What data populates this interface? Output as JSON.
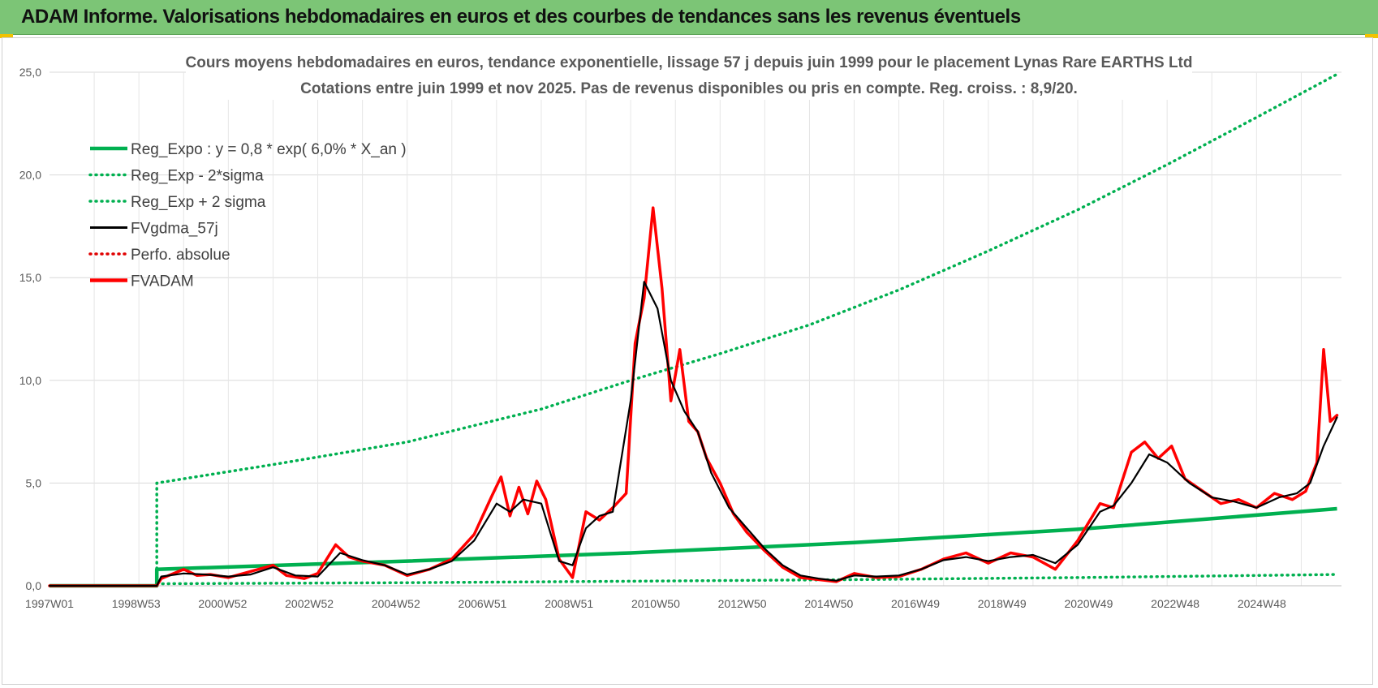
{
  "header": {
    "title": "ADAM Informe. Valorisations hebdomadaires en euros et des courbes de tendances sans les revenus éventuels"
  },
  "chart_data": {
    "type": "line",
    "title_line1": "Cours moyens hebdomadaires en euros, tendance exponentielle, lissage 57 j depuis juin 1999 pour le placement Lynas Rare EARTHS Ltd",
    "title_line2": "Cotations entre juin 1999 et nov 2025.  Pas de revenus disponibles ou pris en compte. Reg. croiss. : 8,9/20.",
    "xlabel": "",
    "ylabel": "",
    "x_range": [
      1997.0,
      2025.9
    ],
    "ylim": [
      0,
      25
    ],
    "y_ticks": [
      "0,0",
      "5,0",
      "10,0",
      "15,0",
      "20,0",
      "25,0"
    ],
    "x_tick_labels": [
      "1997W01",
      "1998W53",
      "2000W52",
      "2002W52",
      "2004W52",
      "2006W51",
      "2008W51",
      "2010W50",
      "2012W50",
      "2014W50",
      "2016W49",
      "2018W49",
      "2020W49",
      "2022W48",
      "2024W48"
    ],
    "grid": true,
    "legend_position": "top-left",
    "legend": [
      {
        "label": "Reg_Expo : y = 0,8 * exp( 6,0% *  X_an )",
        "color": "#00b050",
        "style": "solid-thick"
      },
      {
        "label": "Reg_Exp - 2*sigma",
        "color": "#00b050",
        "style": "dotted"
      },
      {
        "label": "Reg_Exp + 2 sigma",
        "color": "#00b050",
        "style": "dotted"
      },
      {
        "label": "FVgdma_57j",
        "color": "#000000",
        "style": "solid"
      },
      {
        "label": "Perfo. absolue",
        "color": "#e00000",
        "style": "dotted"
      },
      {
        "label": "FVADAM",
        "color": "#ff0000",
        "style": "solid-thick"
      }
    ],
    "series": [
      {
        "name": "Reg_Expo",
        "x": [
          1997.0,
          1999.4,
          1999.4,
          2005,
          2010,
          2015,
          2020,
          2025.8
        ],
        "y": [
          0,
          0,
          0.8,
          1.2,
          1.6,
          2.1,
          2.75,
          3.75
        ]
      },
      {
        "name": "Reg_Exp - 2*sigma",
        "x": [
          1999.4,
          2005,
          2010,
          2015,
          2020,
          2025.8
        ],
        "y": [
          0.1,
          0.15,
          0.22,
          0.3,
          0.4,
          0.55
        ]
      },
      {
        "name": "Reg_Exp + 2 sigma",
        "x": [
          1999.4,
          1999.4,
          2002,
          2005,
          2008,
          2010,
          2012,
          2014,
          2016,
          2018,
          2020,
          2022,
          2024,
          2025.8
        ],
        "y": [
          0,
          5.0,
          5.9,
          7.0,
          8.6,
          10.0,
          11.3,
          12.7,
          14.4,
          16.3,
          18.3,
          20.5,
          22.8,
          24.9
        ]
      },
      {
        "name": "FVgdma_57j",
        "x": [
          1997.0,
          1999.4,
          1999.5,
          2000.0,
          2000.5,
          2001.0,
          2001.5,
          2002.0,
          2002.5,
          2003.0,
          2003.5,
          2004.0,
          2004.5,
          2005.0,
          2005.5,
          2006.0,
          2006.5,
          2007.0,
          2007.3,
          2007.6,
          2008.0,
          2008.4,
          2008.7,
          2009.0,
          2009.3,
          2009.6,
          2010.0,
          2010.3,
          2010.6,
          2010.9,
          2011.2,
          2011.5,
          2011.8,
          2012.2,
          2012.6,
          2013.0,
          2013.4,
          2013.8,
          2014.2,
          2014.6,
          2015.0,
          2015.5,
          2016.0,
          2016.5,
          2017.0,
          2017.5,
          2018.0,
          2018.5,
          2019.0,
          2019.5,
          2020.0,
          2020.5,
          2020.8,
          2021.2,
          2021.6,
          2022.0,
          2022.5,
          2023.0,
          2023.5,
          2024.0,
          2024.5,
          2024.9,
          2025.2,
          2025.5,
          2025.8
        ],
        "y": [
          0,
          0,
          0.45,
          0.6,
          0.55,
          0.45,
          0.55,
          0.9,
          0.5,
          0.45,
          1.6,
          1.25,
          1.0,
          0.55,
          0.8,
          1.2,
          2.2,
          4.0,
          3.6,
          4.2,
          4.0,
          1.2,
          1.0,
          2.8,
          3.4,
          3.6,
          9.0,
          14.8,
          13.5,
          10.0,
          8.5,
          7.5,
          5.5,
          3.8,
          2.8,
          1.8,
          1.0,
          0.5,
          0.35,
          0.25,
          0.5,
          0.45,
          0.5,
          0.8,
          1.25,
          1.4,
          1.2,
          1.4,
          1.5,
          1.1,
          2.0,
          3.6,
          3.9,
          5.0,
          6.4,
          6.0,
          5.0,
          4.3,
          4.1,
          3.8,
          4.3,
          4.5,
          5.0,
          6.8,
          8.2
        ]
      },
      {
        "name": "FVADAM",
        "x": [
          1997.0,
          1999.4,
          1999.5,
          2000.0,
          2000.3,
          2000.6,
          2001.0,
          2001.5,
          2002.0,
          2002.3,
          2002.7,
          2003.0,
          2003.4,
          2003.7,
          2004.0,
          2004.5,
          2005.0,
          2005.5,
          2006.0,
          2006.5,
          2006.9,
          2007.1,
          2007.3,
          2007.5,
          2007.7,
          2007.9,
          2008.1,
          2008.4,
          2008.7,
          2009.0,
          2009.3,
          2009.6,
          2009.9,
          2010.1,
          2010.3,
          2010.5,
          2010.7,
          2010.9,
          2011.1,
          2011.3,
          2011.5,
          2011.7,
          2012.0,
          2012.3,
          2012.6,
          2013.0,
          2013.4,
          2013.8,
          2014.2,
          2014.6,
          2015.0,
          2015.5,
          2016.0,
          2016.5,
          2017.0,
          2017.5,
          2018.0,
          2018.5,
          2019.0,
          2019.5,
          2020.0,
          2020.5,
          2020.8,
          2021.2,
          2021.5,
          2021.8,
          2022.1,
          2022.4,
          2022.8,
          2023.2,
          2023.6,
          2024.0,
          2024.4,
          2024.8,
          2025.1,
          2025.35,
          2025.5,
          2025.65,
          2025.8
        ],
        "y": [
          0,
          0,
          0.35,
          0.8,
          0.5,
          0.55,
          0.4,
          0.7,
          1.0,
          0.5,
          0.35,
          0.6,
          2.0,
          1.4,
          1.2,
          1.0,
          0.5,
          0.8,
          1.3,
          2.5,
          4.4,
          5.3,
          3.4,
          4.8,
          3.5,
          5.1,
          4.2,
          1.3,
          0.4,
          3.6,
          3.2,
          3.8,
          4.5,
          11.8,
          14.0,
          18.4,
          14.5,
          9.0,
          11.5,
          8.0,
          7.5,
          6.2,
          5.0,
          3.5,
          2.6,
          1.7,
          0.9,
          0.4,
          0.3,
          0.2,
          0.6,
          0.4,
          0.45,
          0.8,
          1.3,
          1.6,
          1.1,
          1.6,
          1.4,
          0.8,
          2.2,
          4.0,
          3.8,
          6.5,
          7.0,
          6.2,
          6.8,
          5.2,
          4.6,
          4.0,
          4.2,
          3.8,
          4.5,
          4.2,
          4.6,
          6.0,
          11.5,
          8.0,
          8.3
        ]
      }
    ]
  }
}
